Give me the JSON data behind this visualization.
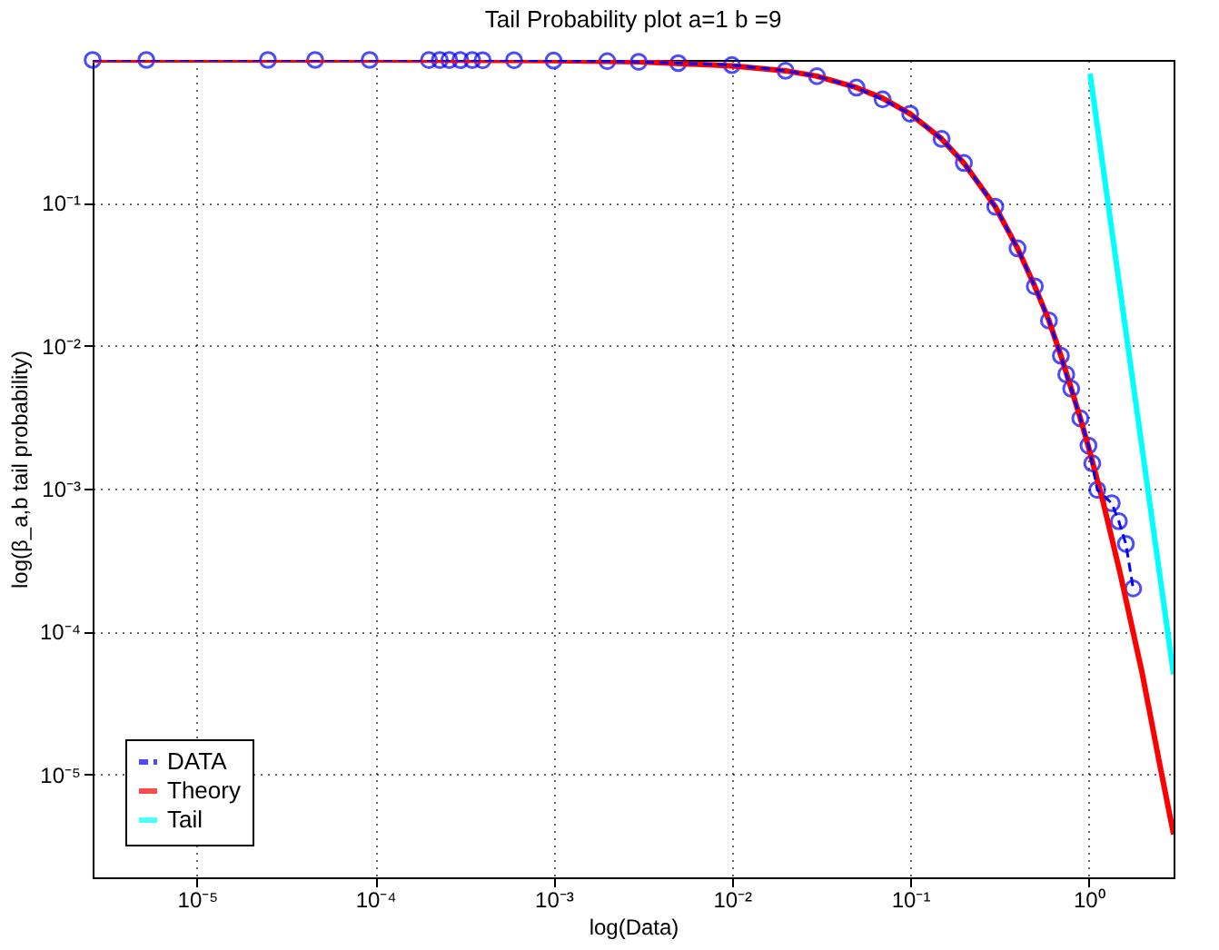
{
  "chart_data": {
    "type": "line",
    "title": "Tail Probability plot a=1 b =9",
    "xlabel": "log(Data)",
    "ylabel": "log(β_a,b tail probability)",
    "log": "xy",
    "grid": true,
    "legend": "bottom left",
    "xlim": [
      2.6e-06,
      3
    ],
    "ylim": [
      1.9e-06,
      1
    ],
    "xticks": [
      {
        "value": 1e-05,
        "label": "10⁻⁵"
      },
      {
        "value": 0.0001,
        "label": "10⁻⁴"
      },
      {
        "value": 0.001,
        "label": "10⁻³"
      },
      {
        "value": 0.01,
        "label": "10⁻²"
      },
      {
        "value": 0.1,
        "label": "10⁻¹"
      },
      {
        "value": 1,
        "label": "10⁰"
      }
    ],
    "yticks": [
      {
        "value": 1e-05,
        "label": "10⁻⁵"
      },
      {
        "value": 0.0001,
        "label": "10⁻⁴"
      },
      {
        "value": 0.001,
        "label": "10⁻³"
      },
      {
        "value": 0.01,
        "label": "10⁻²"
      },
      {
        "value": 0.1,
        "label": "10⁻¹"
      }
    ],
    "series": [
      {
        "name": "DATA",
        "color": "#0000ff",
        "marker": "circle",
        "line_style": "dashed",
        "x": [
          2.6e-06,
          5.2e-06,
          2.5e-05,
          4.6e-05,
          9.3e-05,
          0.0002,
          0.00023,
          0.00026,
          0.0003,
          0.00035,
          0.0004,
          0.0006,
          0.001,
          0.002,
          0.003,
          0.005,
          0.01,
          0.02,
          0.03,
          0.05,
          0.07,
          0.1,
          0.15,
          0.2,
          0.3,
          0.4,
          0.5,
          0.6,
          0.7,
          0.75,
          0.8,
          0.9,
          1.0,
          1.05,
          1.12,
          1.35,
          1.48,
          1.62,
          1.78
        ],
        "values": [
          1,
          1,
          1,
          1,
          1,
          0.998,
          0.998,
          0.998,
          0.997,
          0.997,
          0.996,
          0.995,
          0.99,
          0.98,
          0.97,
          0.95,
          0.92,
          0.84,
          0.77,
          0.64,
          0.53,
          0.42,
          0.28,
          0.19,
          0.094,
          0.048,
          0.026,
          0.015,
          0.0085,
          0.0063,
          0.005,
          0.0031,
          0.002,
          0.0015,
          0.00098,
          0.00079,
          0.00059,
          0.00041,
          0.0002
        ]
      },
      {
        "name": "Theory",
        "color": "#ff0000",
        "marker": "none",
        "line_style": "solid",
        "x": [
          2.6e-06,
          0.0001,
          0.001,
          0.003,
          0.01,
          0.02,
          0.03,
          0.05,
          0.07,
          0.1,
          0.15,
          0.2,
          0.3,
          0.4,
          0.5,
          0.6,
          0.7,
          0.8,
          0.9,
          1.0,
          1.2,
          1.5,
          2,
          2.5,
          3
        ],
        "values": [
          1,
          0.999,
          0.99,
          0.97,
          0.91,
          0.84,
          0.77,
          0.64,
          0.54,
          0.42,
          0.28,
          0.19,
          0.094,
          0.048,
          0.026,
          0.015,
          0.0085,
          0.005,
          0.0031,
          0.00195,
          0.00083,
          0.00026,
          5.1e-05,
          1.2e-05,
          3.8e-06
        ]
      },
      {
        "name": "Tail",
        "color": "#00ffff",
        "marker": "none",
        "line_style": "solid",
        "x": [
          1.02,
          3
        ],
        "values": [
          0.8,
          5e-05
        ]
      }
    ]
  }
}
